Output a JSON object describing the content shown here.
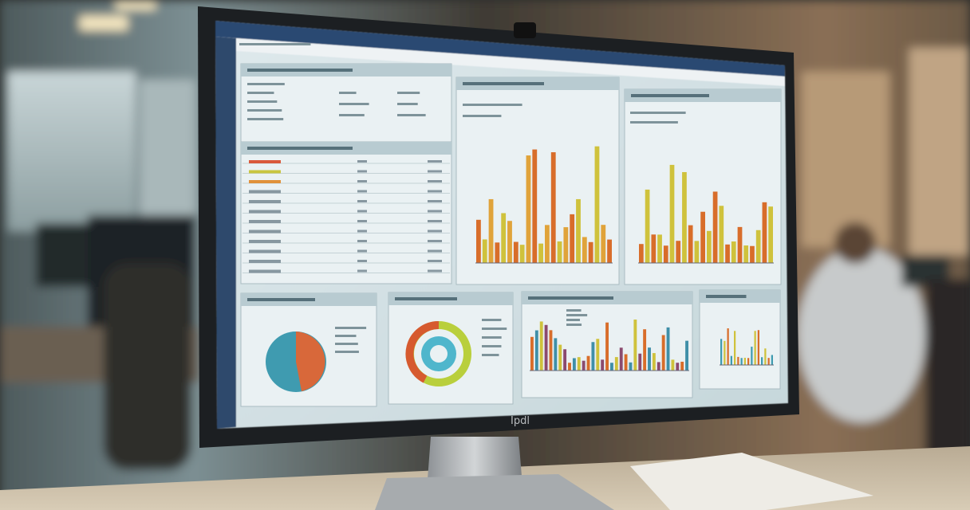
{
  "monitor": {
    "logo": "Ipdl"
  }
}
